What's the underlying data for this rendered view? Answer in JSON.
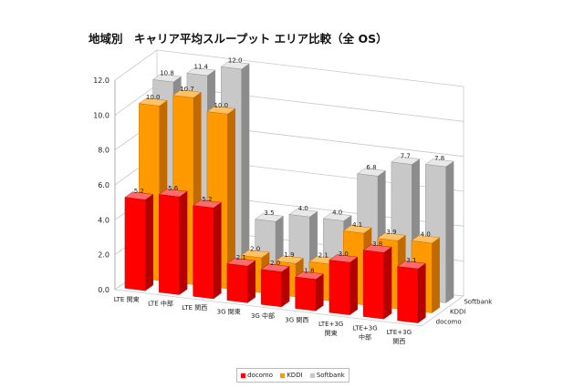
{
  "title": "地域別　キャリア平均スループット エリア比較（全 OS）",
  "chart_data": {
    "type": "bar",
    "variant": "3d-column",
    "title": "地域別　キャリア平均スループット エリア比較（全 OS）",
    "categories": [
      "LTE 関東",
      "LTE 中部",
      "LTE 関西",
      "3G 関東",
      "3G 中部",
      "3G 関西",
      "LTE+3G\n関東",
      "LTE+3G\n中部",
      "LTE+3G\n関西"
    ],
    "series": [
      {
        "name": "docomo",
        "color": "#ff0000",
        "side": "#b30000",
        "top": "#ff6b6b",
        "values": [
          5.2,
          5.6,
          5.2,
          2.1,
          2.0,
          1.8,
          3.0,
          3.8,
          3.1
        ]
      },
      {
        "name": "KDDI",
        "color": "#ff9900",
        "side": "#c06a00",
        "top": "#ffc266",
        "values": [
          10.0,
          10.7,
          10.0,
          2.0,
          1.9,
          2.1,
          4.1,
          3.9,
          4.0
        ]
      },
      {
        "name": "Softbank",
        "color": "#c8c8c8",
        "side": "#8c8c8c",
        "top": "#e8e8e8",
        "values": [
          10.8,
          11.4,
          12.0,
          3.5,
          4.0,
          4.0,
          6.8,
          7.7,
          7.8
        ]
      }
    ],
    "ylim": [
      0,
      12
    ],
    "yticks": [
      "0.0",
      "2.0",
      "4.0",
      "6.0",
      "8.0",
      "10.0",
      "12.0"
    ],
    "depth_labels": [
      "Softbank",
      "KDDI",
      "docomo"
    ],
    "xlabel": "",
    "ylabel": "",
    "grid": true,
    "legend": "bottom"
  }
}
